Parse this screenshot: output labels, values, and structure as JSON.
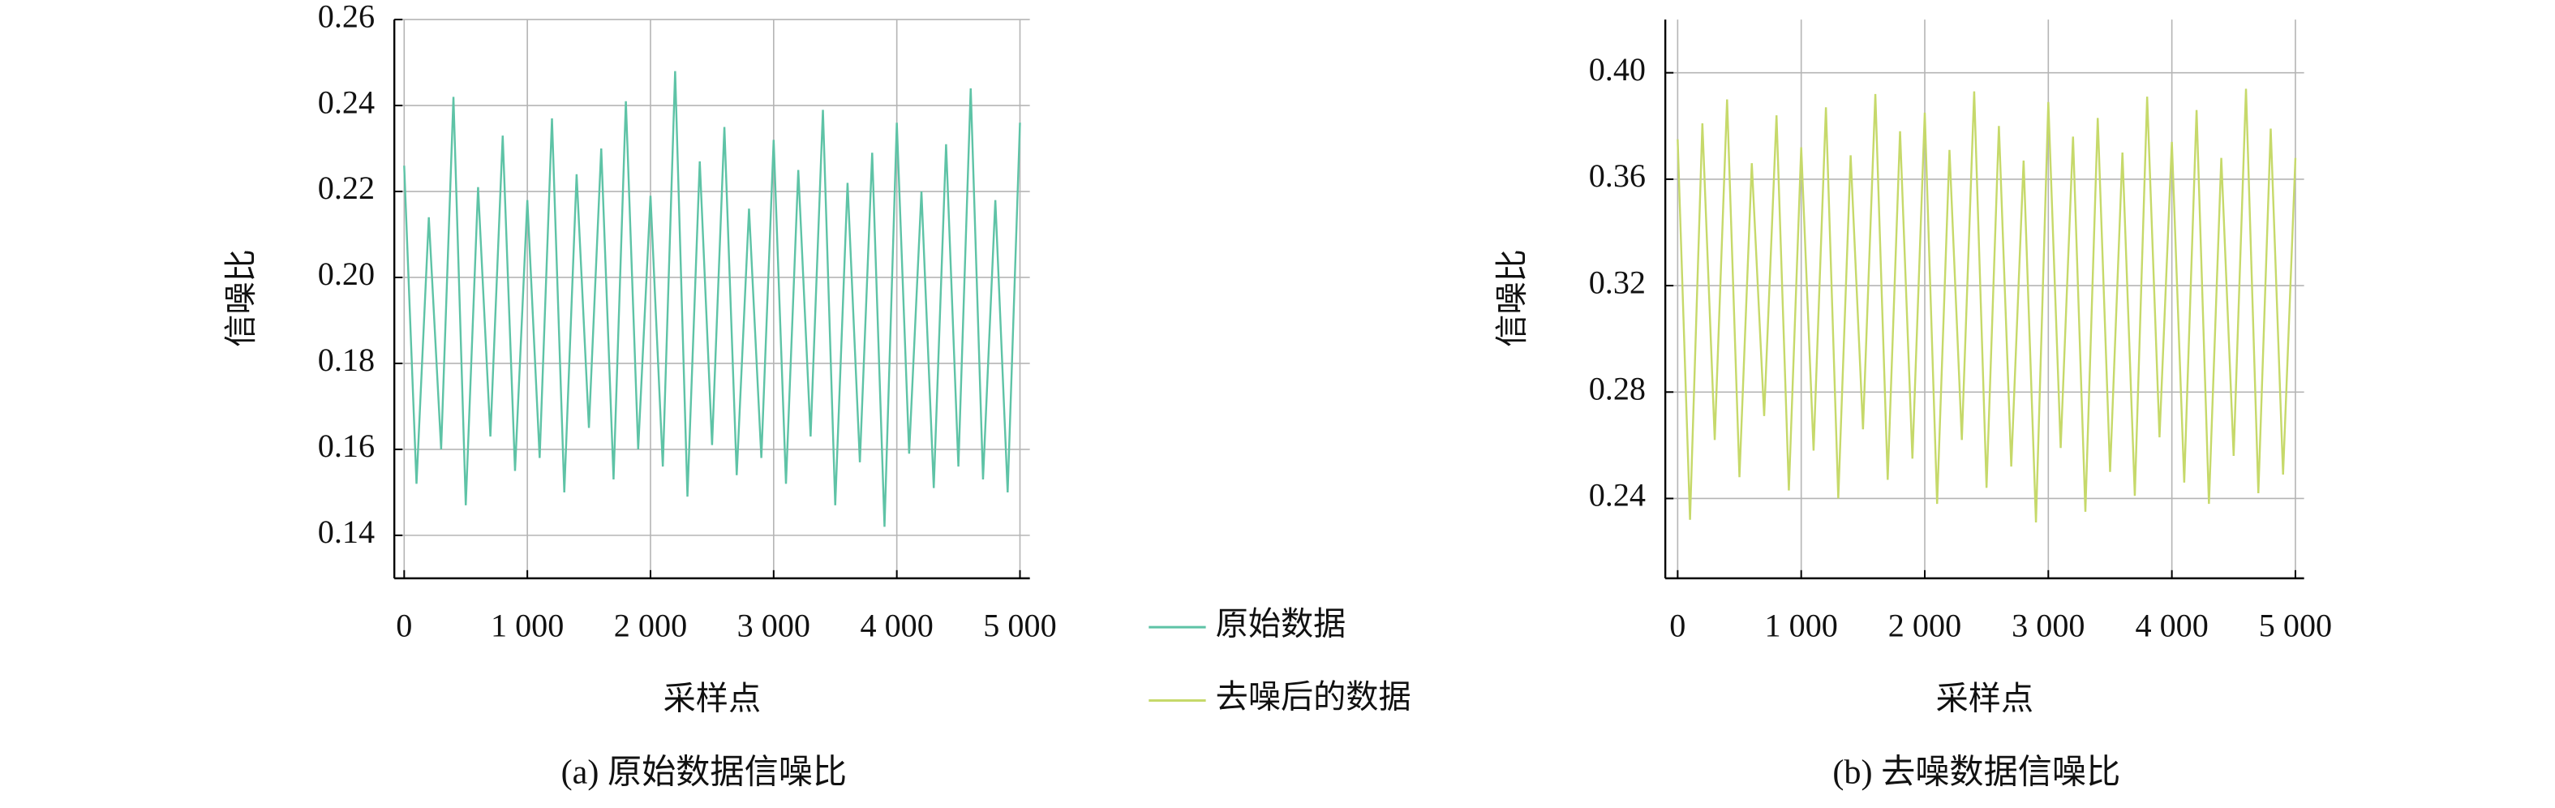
{
  "chart_data": [
    {
      "type": "line",
      "caption": "(a) 原始数据信噪比",
      "xlabel": "采样点",
      "ylabel": "信噪比",
      "x": [
        0,
        100,
        200,
        300,
        400,
        500,
        600,
        700,
        800,
        900,
        1000,
        1100,
        1200,
        1300,
        1400,
        1500,
        1600,
        1700,
        1800,
        1900,
        2000,
        2100,
        2200,
        2300,
        2400,
        2500,
        2600,
        2700,
        2800,
        2900,
        3000,
        3100,
        3200,
        3300,
        3400,
        3500,
        3600,
        3700,
        3800,
        3900,
        4000,
        4100,
        4200,
        4300,
        4400,
        4500,
        4600,
        4700,
        4800,
        4900,
        5000
      ],
      "series": [
        {
          "name": "原始数据",
          "color": "#5ec3a6",
          "values": [
            0.226,
            0.152,
            0.214,
            0.16,
            0.242,
            0.147,
            0.221,
            0.163,
            0.233,
            0.155,
            0.218,
            0.158,
            0.237,
            0.15,
            0.224,
            0.165,
            0.23,
            0.153,
            0.241,
            0.16,
            0.219,
            0.156,
            0.248,
            0.149,
            0.227,
            0.161,
            0.235,
            0.154,
            0.216,
            0.158,
            0.232,
            0.152,
            0.225,
            0.163,
            0.239,
            0.147,
            0.222,
            0.157,
            0.229,
            0.142,
            0.236,
            0.159,
            0.22,
            0.151,
            0.231,
            0.156,
            0.244,
            0.153,
            0.218,
            0.15,
            0.236
          ]
        }
      ],
      "xlim": [
        -80,
        5080
      ],
      "ylim": [
        0.13,
        0.26
      ],
      "xticks": [
        0,
        {
          "value": 1000,
          "label": "1 000"
        },
        {
          "value": 2000,
          "label": "2 000"
        },
        {
          "value": 3000,
          "label": "3 000"
        },
        {
          "value": 4000,
          "label": "4 000"
        },
        {
          "value": 5000,
          "label": "5 000"
        }
      ],
      "yticks": [
        0.14,
        0.16,
        0.18,
        {
          "value": 0.2,
          "label": "0.20"
        },
        0.22,
        0.24,
        0.26
      ],
      "grid": true
    },
    {
      "type": "line",
      "caption": "(b) 去噪数据信噪比",
      "xlabel": "采样点",
      "ylabel": "信噪比",
      "x": [
        0,
        100,
        200,
        300,
        400,
        500,
        600,
        700,
        800,
        900,
        1000,
        1100,
        1200,
        1300,
        1400,
        1500,
        1600,
        1700,
        1800,
        1900,
        2000,
        2100,
        2200,
        2300,
        2400,
        2500,
        2600,
        2700,
        2800,
        2900,
        3000,
        3100,
        3200,
        3300,
        3400,
        3500,
        3600,
        3700,
        3800,
        3900,
        4000,
        4100,
        4200,
        4300,
        4400,
        4500,
        4600,
        4700,
        4800,
        4900,
        5000
      ],
      "series": [
        {
          "name": "去噪后的数据",
          "color": "#c6d96a",
          "values": [
            0.375,
            0.232,
            0.381,
            0.262,
            0.39,
            0.248,
            0.366,
            0.271,
            0.384,
            0.243,
            0.372,
            0.258,
            0.387,
            0.24,
            0.369,
            0.266,
            0.392,
            0.247,
            0.378,
            0.255,
            0.385,
            0.238,
            0.371,
            0.262,
            0.393,
            0.244,
            0.38,
            0.252,
            0.367,
            0.231,
            0.389,
            0.259,
            0.376,
            0.235,
            0.383,
            0.25,
            0.37,
            0.241,
            0.391,
            0.263,
            0.374,
            0.246,
            0.386,
            0.238,
            0.368,
            0.256,
            0.394,
            0.242,
            0.379,
            0.249,
            0.368
          ]
        }
      ],
      "xlim": [
        -100,
        5070
      ],
      "ylim": [
        0.21,
        0.42
      ],
      "xticks": [
        0,
        {
          "value": 1000,
          "label": "1 000"
        },
        {
          "value": 2000,
          "label": "2 000"
        },
        {
          "value": 3000,
          "label": "3 000"
        },
        {
          "value": 4000,
          "label": "4 000"
        },
        {
          "value": 5000,
          "label": "5 000"
        }
      ],
      "yticks": [
        0.24,
        0.28,
        0.32,
        0.36,
        {
          "value": 0.4,
          "label": "0.40"
        }
      ],
      "grid": true
    }
  ]
}
